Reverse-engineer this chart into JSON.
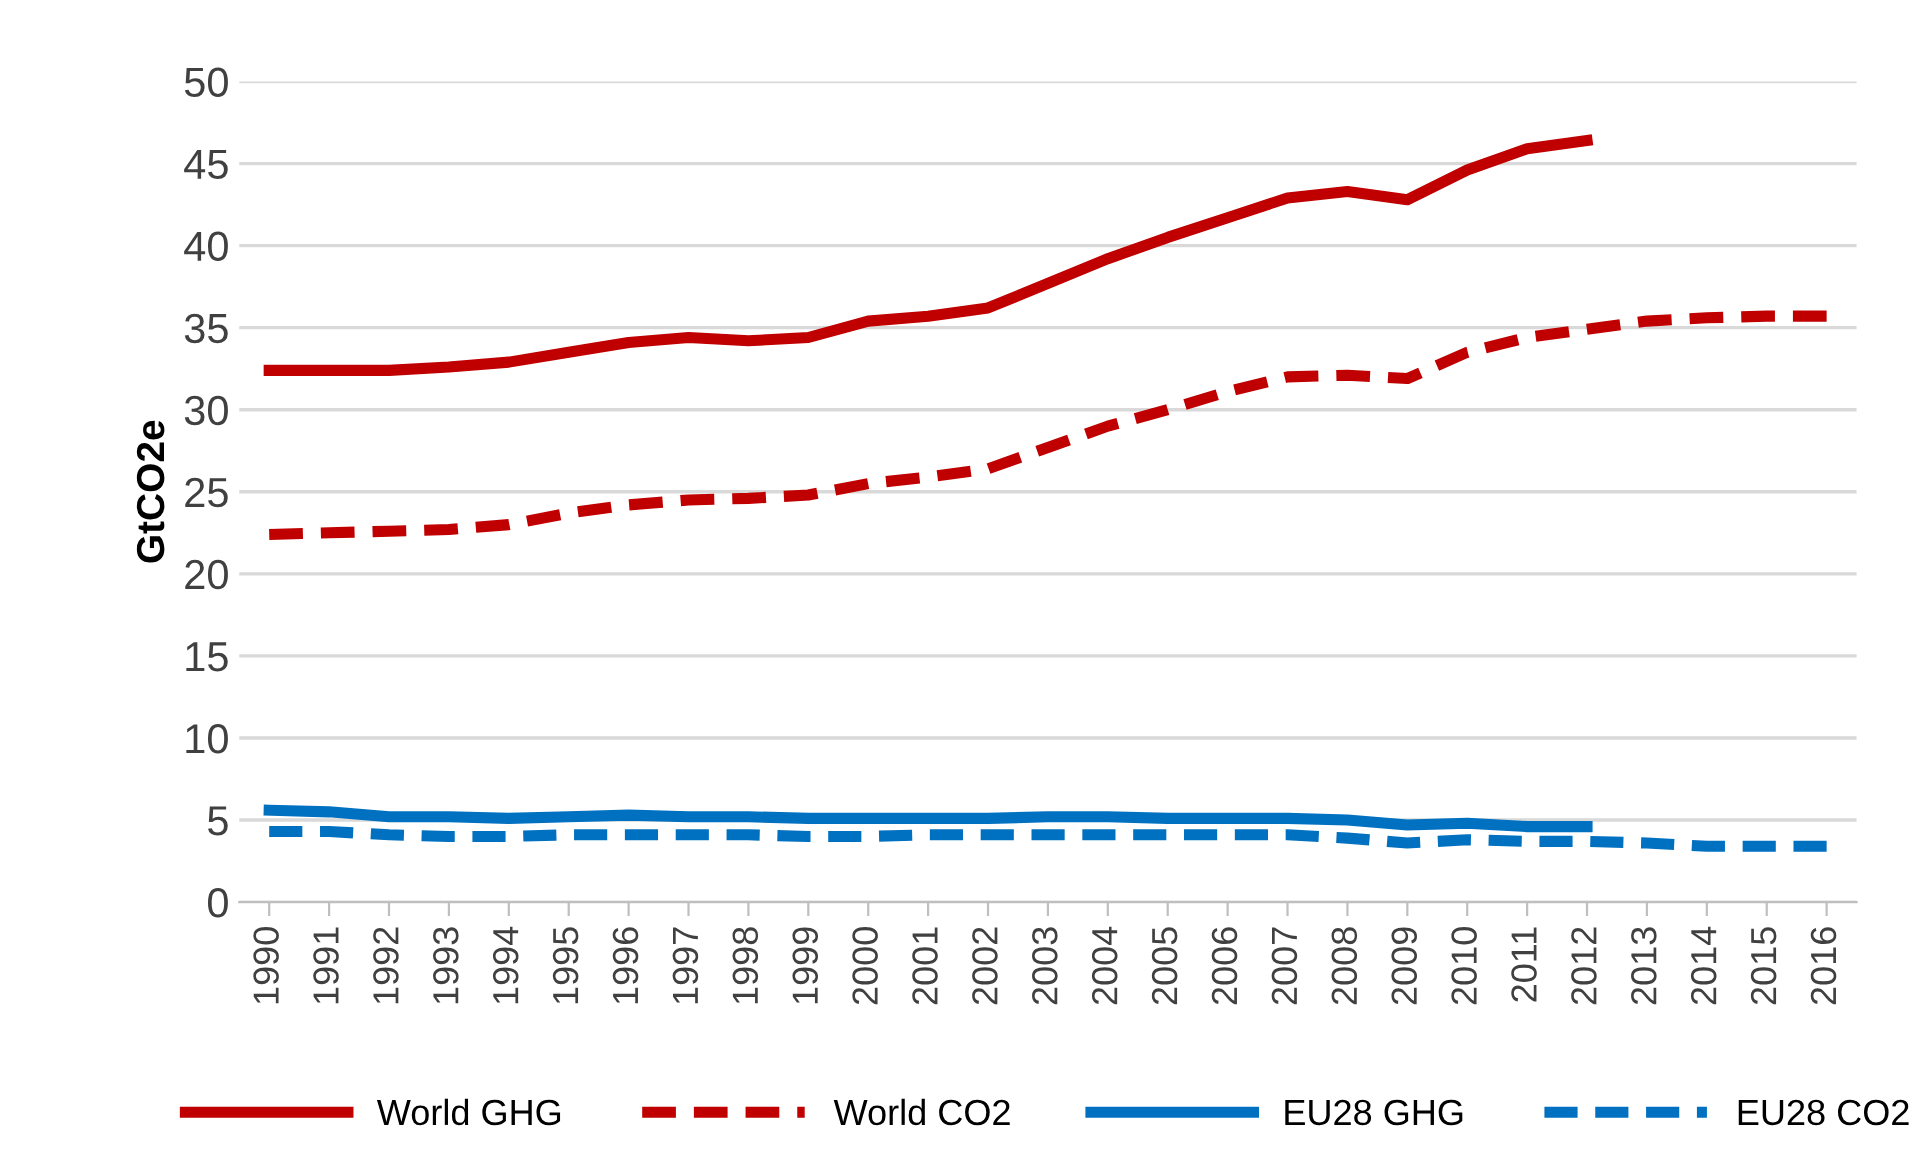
{
  "chart_data": {
    "type": "line",
    "ylabel": "GtCO2e",
    "categories": [
      "1990",
      "1991",
      "1992",
      "1993",
      "1994",
      "1995",
      "1996",
      "1997",
      "1998",
      "1999",
      "2000",
      "2001",
      "2002",
      "2003",
      "2004",
      "2005",
      "2006",
      "2007",
      "2008",
      "2009",
      "2010",
      "2011",
      "2012",
      "2013",
      "2014",
      "2015",
      "2016"
    ],
    "series": [
      {
        "name": "World GHG",
        "color": "#c00000",
        "line_style": "solid",
        "values": [
          32.4,
          32.4,
          32.4,
          32.6,
          32.9,
          33.5,
          34.1,
          34.4,
          34.2,
          34.4,
          35.4,
          35.7,
          36.2,
          37.7,
          39.2,
          40.5,
          41.7,
          42.9,
          43.3,
          42.8,
          44.6,
          45.9,
          46.4,
          null,
          null,
          null,
          null
        ]
      },
      {
        "name": "World CO2",
        "color": "#c00000",
        "line_style": "dashed",
        "values": [
          22.4,
          22.5,
          22.6,
          22.7,
          23.0,
          23.7,
          24.2,
          24.5,
          24.6,
          24.8,
          25.5,
          25.9,
          26.4,
          27.7,
          29.0,
          30.0,
          31.1,
          32.0,
          32.1,
          31.9,
          33.5,
          34.4,
          34.9,
          35.4,
          35.6,
          35.7,
          35.7
        ]
      },
      {
        "name": "EU28 GHG",
        "color": "#0070c0",
        "line_style": "solid",
        "values": [
          5.6,
          5.5,
          5.2,
          5.2,
          5.1,
          5.2,
          5.3,
          5.2,
          5.2,
          5.1,
          5.1,
          5.1,
          5.1,
          5.2,
          5.2,
          5.1,
          5.1,
          5.1,
          5.0,
          4.7,
          4.8,
          4.6,
          4.6,
          null,
          null,
          null,
          null
        ]
      },
      {
        "name": "EU28 CO2",
        "color": "#0070c0",
        "line_style": "dashed",
        "values": [
          4.3,
          4.3,
          4.1,
          4.0,
          4.0,
          4.1,
          4.1,
          4.1,
          4.1,
          4.0,
          4.0,
          4.1,
          4.1,
          4.1,
          4.1,
          4.1,
          4.1,
          4.1,
          3.9,
          3.6,
          3.8,
          3.7,
          3.7,
          3.6,
          3.4,
          3.4,
          3.4
        ]
      }
    ],
    "ylim": [
      0,
      50
    ],
    "yticks": [
      0,
      5,
      10,
      15,
      20,
      25,
      30,
      35,
      40,
      45,
      50
    ],
    "grid": "y",
    "legend": "bottom",
    "marker": "none"
  }
}
